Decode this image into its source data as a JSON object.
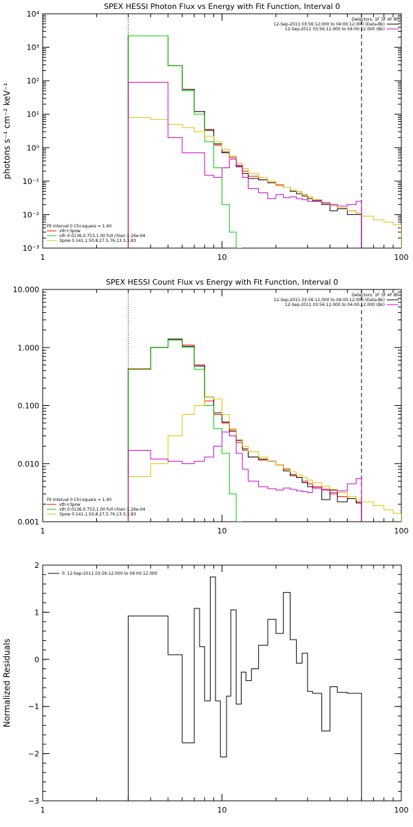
{
  "chart_data": [
    {
      "type": "line",
      "title": "SPEX HESSI Photon Flux vs Energy with Fit Function, Interval 0",
      "ylabel": "photons s⁻¹ cm⁻² keV⁻¹",
      "xlabel": "",
      "x_scale": "log",
      "y_scale": "log",
      "xlim": [
        1,
        100
      ],
      "ylim": [
        0.001,
        10000
      ],
      "x_ticks": [
        {
          "v": 1,
          "label": "1"
        },
        {
          "v": 10,
          "label": "10"
        },
        {
          "v": 100,
          "label": "100"
        }
      ],
      "y_ticks": [
        {
          "v": 0.001,
          "label": "10⁻³"
        },
        {
          "v": 0.01,
          "label": "10⁻²"
        },
        {
          "v": 0.1,
          "label": "10⁻¹"
        },
        {
          "v": 1,
          "label": "10⁰"
        },
        {
          "v": 10,
          "label": "10¹"
        },
        {
          "v": 100,
          "label": "10²"
        },
        {
          "v": 1000,
          "label": "10³"
        },
        {
          "v": 10000,
          "label": "10⁴"
        }
      ],
      "vlines": [
        {
          "x": 3,
          "style": "dotted"
        },
        {
          "x": 60,
          "style": "dashed"
        }
      ],
      "legend_topright": {
        "header": "Detectors: 1F 3F 4F 8F",
        "entries": [
          {
            "label": "12-Sep-2011 03:56:12.000 to 04:00:12.000 (Data-Bk)",
            "color": "#000000"
          },
          {
            "label": "12-Sep-2011 03:56:12.000 to 04:00:12.000 (Bk)",
            "color": "#cc00cc"
          }
        ]
      },
      "legend_bottomleft": {
        "header": "Fit Interval 0   Chi-square = 1.40",
        "entries": [
          {
            "label": "vth+3pow",
            "color": "#ff0000"
          },
          {
            "label": "vth 0.0136,0.753,1.00  full chian 1.26e-04",
            "color": "#00cc00"
          },
          {
            "label": "3pow 0.141,1.50,8.27,5.76,13.3,1.83",
            "color": "#e6c000"
          }
        ]
      },
      "edges": [
        3,
        4,
        5,
        6,
        7,
        8,
        9,
        10,
        11,
        12,
        13,
        14,
        16,
        18,
        20,
        22,
        24,
        26,
        28,
        30,
        32,
        36,
        40,
        44,
        50,
        56,
        60,
        70,
        80,
        90,
        100
      ],
      "series": [
        {
          "color": "#ff0000",
          "values": [
            2200,
            2200,
            280,
            55,
            12,
            3.5,
            1.2,
            0.75,
            0.5,
            0.28,
            0.2,
            0.14,
            0.11,
            0.09,
            0.075,
            0.065,
            0.055,
            0.048,
            0.04,
            0.034,
            0.028,
            0.023,
            0.019,
            0.016,
            0.013,
            0.011,
            null,
            null,
            null,
            null
          ]
        },
        {
          "color": "#000000",
          "values": [
            2200,
            2200,
            280,
            55,
            12,
            3.3,
            1.3,
            0.7,
            0.55,
            0.27,
            0.17,
            0.12,
            0.11,
            0.09,
            0.08,
            0.065,
            0.05,
            0.042,
            0.036,
            0.03,
            0.026,
            0.02,
            0.013,
            0.015,
            0.01,
            0.01,
            null,
            null,
            null,
            null
          ]
        },
        {
          "color": "#00cc00",
          "values": [
            2200,
            2200,
            280,
            50,
            10,
            1.5,
            0.25,
            0.02,
            0.003,
            0.001,
            null,
            null,
            null,
            null,
            null,
            null,
            null,
            null,
            null,
            null,
            null,
            null,
            null,
            null,
            null,
            null,
            null,
            null,
            null,
            null
          ]
        },
        {
          "color": "#e6c000",
          "values": [
            8,
            7,
            5,
            4,
            3,
            2.2,
            1.5,
            0.9,
            0.55,
            0.35,
            0.24,
            0.17,
            0.13,
            0.1,
            0.08,
            0.065,
            0.055,
            0.048,
            0.04,
            0.034,
            0.028,
            0.023,
            0.019,
            0.016,
            0.013,
            0.011,
            0.009,
            0.007,
            0.006,
            0.005
          ]
        },
        {
          "color": "#cc00cc",
          "values": [
            90,
            90,
            2,
            0.7,
            0.7,
            0.15,
            0.13,
            0.25,
            0.45,
            0.3,
            0.13,
            0.06,
            0.045,
            0.03,
            0.04,
            0.032,
            0.034,
            0.03,
            0.028,
            0.025,
            0.025,
            0.022,
            0.02,
            0.018,
            0.02,
            0.025,
            null,
            null,
            null,
            null
          ]
        }
      ]
    },
    {
      "type": "line",
      "title": "SPEX HESSI Count Flux vs Energy with Fit Function, Interval 0",
      "ylabel": "",
      "xlabel": "",
      "x_scale": "log",
      "y_scale": "log",
      "xlim": [
        1,
        100
      ],
      "ylim": [
        0.001,
        10
      ],
      "x_ticks": [
        {
          "v": 1,
          "label": "1"
        },
        {
          "v": 10,
          "label": "10"
        },
        {
          "v": 100,
          "label": "100"
        }
      ],
      "y_ticks": [
        {
          "v": 0.001,
          "label": "0.001"
        },
        {
          "v": 0.01,
          "label": "0.010"
        },
        {
          "v": 0.1,
          "label": "0.100"
        },
        {
          "v": 1,
          "label": "1.000"
        },
        {
          "v": 10,
          "label": "10.000"
        }
      ],
      "vlines": [
        {
          "x": 3,
          "style": "dotted"
        },
        {
          "x": 60,
          "style": "dashed"
        }
      ],
      "legend_topright": {
        "header": "Detectors: 1F 3F 4F 8F",
        "entries": [
          {
            "label": "12-Sep-2011 03:56:12.000 to 04:00:12.000 (Data-Bk)",
            "color": "#000000"
          },
          {
            "label": "12-Sep-2011 03:56:12.000 to 04:00:12.000 (Bk)",
            "color": "#cc00cc"
          }
        ]
      },
      "legend_bottomleft": {
        "header": "Fit Interval 0   Chi-square = 1.40",
        "entries": [
          {
            "label": "vth+3pow",
            "color": "#ff0000"
          },
          {
            "label": "vth 0.0136,0.753,1.00  full chian 1.26e-04",
            "color": "#00cc00"
          },
          {
            "label": "3pow 0.141,1.50,8.27,5.76,13.3,1.83",
            "color": "#e6c000"
          }
        ]
      },
      "edges": [
        3,
        4,
        5,
        6,
        7,
        8,
        9,
        10,
        11,
        12,
        13,
        14,
        16,
        18,
        20,
        22,
        24,
        26,
        28,
        30,
        32,
        36,
        40,
        44,
        50,
        56,
        60,
        70,
        80,
        90,
        100
      ],
      "series": [
        {
          "color": "#ff0000",
          "values": [
            0.43,
            1.0,
            1.35,
            1.1,
            0.5,
            0.12,
            0.07,
            0.05,
            0.038,
            0.023,
            0.017,
            0.013,
            0.0115,
            0.011,
            0.0095,
            0.008,
            0.0065,
            0.0058,
            0.005,
            0.0045,
            0.004,
            0.0036,
            0.003,
            0.0027,
            0.0025,
            0.0022,
            null,
            null,
            null,
            null
          ]
        },
        {
          "color": "#000000",
          "values": [
            0.42,
            1.0,
            1.4,
            1.05,
            0.48,
            0.14,
            0.075,
            0.052,
            0.036,
            0.025,
            0.018,
            0.013,
            0.012,
            0.011,
            0.0095,
            0.0075,
            0.0062,
            0.0058,
            0.0047,
            0.004,
            0.0038,
            0.0024,
            0.0035,
            0.0022,
            0.0025,
            0.0021,
            null,
            null,
            null,
            null
          ]
        },
        {
          "color": "#00cc00",
          "values": [
            0.42,
            1.0,
            1.35,
            1.0,
            0.42,
            0.1,
            0.04,
            0.015,
            0.003,
            0.001,
            null,
            null,
            null,
            null,
            null,
            null,
            null,
            null,
            null,
            null,
            null,
            null,
            null,
            null,
            null,
            null,
            null,
            null,
            null,
            null
          ]
        },
        {
          "color": "#e6c000",
          "values": [
            0.006,
            0.01,
            0.03,
            0.07,
            0.1,
            0.14,
            0.13,
            0.07,
            0.04,
            0.026,
            0.02,
            0.016,
            0.013,
            0.011,
            0.0095,
            0.0082,
            0.0072,
            0.0064,
            0.0058,
            0.0052,
            0.0047,
            0.0041,
            0.0036,
            0.0032,
            0.0027,
            0.0024,
            0.0022,
            0.0019,
            0.0016,
            0.0014
          ]
        },
        {
          "color": "#cc00cc",
          "values": [
            0.017,
            0.012,
            0.011,
            0.01,
            0.011,
            0.013,
            0.02,
            0.035,
            0.03,
            0.015,
            0.008,
            0.005,
            0.004,
            0.0037,
            0.0035,
            0.0038,
            0.0036,
            0.0034,
            0.0033,
            0.0032,
            0.0038,
            0.0035,
            0.0032,
            0.0034,
            0.0045,
            0.0055,
            null,
            null,
            null,
            null
          ]
        }
      ]
    },
    {
      "type": "line",
      "title": "",
      "ylabel": "Normalized Residuals",
      "xlabel": "",
      "x_scale": "log",
      "y_scale": "linear",
      "xlim": [
        1,
        100
      ],
      "ylim": [
        -3,
        2
      ],
      "x_ticks": [
        {
          "v": 1,
          "label": "1"
        },
        {
          "v": 10,
          "label": "10"
        },
        {
          "v": 100,
          "label": "100"
        }
      ],
      "y_ticks": [
        {
          "v": -3,
          "label": "−3"
        },
        {
          "v": -2,
          "label": "−2"
        },
        {
          "v": -1,
          "label": "−1"
        },
        {
          "v": 0,
          "label": "0"
        },
        {
          "v": 1,
          "label": "1"
        },
        {
          "v": 2,
          "label": "2"
        }
      ],
      "legend_topleft": {
        "entries": [
          {
            "label": "0. 12-Sep-2011 03:56:12.000 to 04:00:12.000",
            "color": "#000000"
          }
        ]
      },
      "edges": [
        3,
        4,
        5,
        6,
        7,
        7.5,
        8,
        8.6,
        9.2,
        9.8,
        10.6,
        11.2,
        12,
        12.8,
        13.6,
        14.6,
        16,
        18,
        20,
        22,
        24,
        26,
        28,
        30,
        32,
        36,
        40,
        44,
        50,
        56,
        60
      ],
      "series": [
        {
          "color": "#000000",
          "values": [
            0.92,
            0.92,
            0.1,
            -1.77,
            1.08,
            0.27,
            -0.88,
            1.75,
            -0.88,
            -2.07,
            -0.78,
            1.05,
            -0.95,
            -0.27,
            -0.45,
            -0.2,
            0.3,
            0.85,
            0.55,
            1.42,
            0.42,
            -0.08,
            0.13,
            -0.68,
            -0.72,
            -1.52,
            -0.58,
            -0.7,
            -0.72,
            -0.72
          ]
        }
      ]
    }
  ]
}
